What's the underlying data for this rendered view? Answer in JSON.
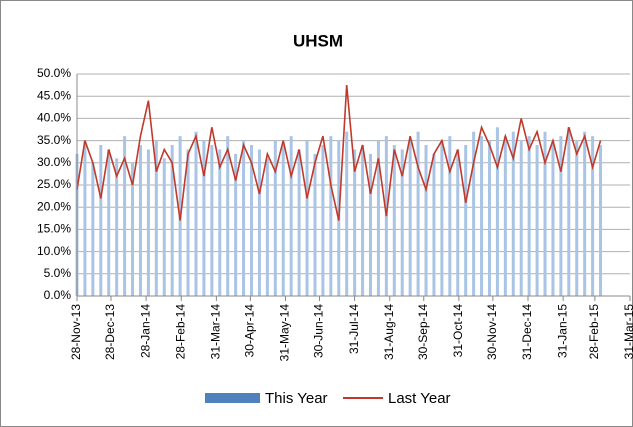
{
  "chart_data": {
    "type": "bar-line",
    "title": "UHSM",
    "x": [
      "2013-11-28",
      "2013-12-05",
      "2013-12-12",
      "2013-12-19",
      "2013-12-26",
      "2014-01-02",
      "2014-01-09",
      "2014-01-16",
      "2014-01-23",
      "2014-01-30",
      "2014-02-06",
      "2014-02-13",
      "2014-02-20",
      "2014-02-27",
      "2014-03-06",
      "2014-03-13",
      "2014-03-20",
      "2014-03-27",
      "2014-04-03",
      "2014-04-10",
      "2014-04-17",
      "2014-04-24",
      "2014-05-01",
      "2014-05-08",
      "2014-05-15",
      "2014-05-22",
      "2014-05-29",
      "2014-06-05",
      "2014-06-12",
      "2014-06-19",
      "2014-06-26",
      "2014-07-03",
      "2014-07-10",
      "2014-07-17",
      "2014-07-24",
      "2014-07-31",
      "2014-08-07",
      "2014-08-14",
      "2014-08-21",
      "2014-08-28",
      "2014-09-04",
      "2014-09-11",
      "2014-09-18",
      "2014-09-25",
      "2014-10-02",
      "2014-10-09",
      "2014-10-16",
      "2014-10-23",
      "2014-10-30",
      "2014-11-06",
      "2014-11-13",
      "2014-11-20",
      "2014-11-27",
      "2014-12-04",
      "2014-12-11",
      "2014-12-18",
      "2014-12-25",
      "2015-01-01",
      "2015-01-08",
      "2015-01-15",
      "2015-01-22",
      "2015-01-29",
      "2015-02-05",
      "2015-02-12",
      "2015-02-19",
      "2015-02-26",
      "2015-03-05"
    ],
    "series": [
      {
        "name": "This Year",
        "kind": "bar",
        "color": "#a9c4e4",
        "values": [
          32,
          35,
          30,
          34,
          33,
          31,
          36,
          30,
          34,
          33,
          35,
          31,
          34,
          36,
          33,
          37,
          35,
          34,
          33,
          36,
          32,
          35,
          34,
          33,
          31,
          35,
          34,
          36,
          33,
          35,
          32,
          34,
          36,
          35,
          37,
          33,
          34,
          32,
          35,
          36,
          34,
          33,
          35,
          37,
          34,
          32,
          35,
          36,
          33,
          34,
          37,
          36,
          35,
          38,
          36,
          37,
          35,
          36,
          34,
          37,
          35,
          36,
          38,
          35,
          37,
          36,
          34
        ]
      },
      {
        "name": "Last Year",
        "kind": "line",
        "color": "#c0392b",
        "values": [
          24,
          35,
          30,
          22,
          33,
          27,
          31,
          25,
          36,
          44,
          28,
          33,
          30,
          17,
          32,
          36,
          27,
          38,
          29,
          33,
          26,
          34,
          30,
          23,
          32,
          28,
          35,
          27,
          33,
          22,
          30,
          36,
          25,
          17,
          47.5,
          28,
          34,
          23,
          31,
          18,
          33,
          27,
          36,
          29,
          24,
          32,
          35,
          28,
          33,
          21,
          30,
          38,
          34,
          29,
          36,
          31,
          40,
          33,
          37,
          30,
          35,
          28,
          38,
          32,
          36,
          29,
          35
        ]
      }
    ],
    "ylim": [
      0,
      50
    ],
    "yticks": [
      {
        "value": 0,
        "label": "0.0%"
      },
      {
        "value": 5,
        "label": "5.0%"
      },
      {
        "value": 10,
        "label": "10.0%"
      },
      {
        "value": 15,
        "label": "15.0%"
      },
      {
        "value": 20,
        "label": "20.0%"
      },
      {
        "value": 25,
        "label": "25.0%"
      },
      {
        "value": 30,
        "label": "30.0%"
      },
      {
        "value": 35,
        "label": "35.0%"
      },
      {
        "value": 40,
        "label": "40.0%"
      },
      {
        "value": 45,
        "label": "45.0%"
      },
      {
        "value": 50,
        "label": "50.0%"
      }
    ],
    "xlim": [
      "2013-11-28",
      "2015-03-31"
    ],
    "xticks": [
      {
        "value": "2013-11-28",
        "label": "28-Nov-13"
      },
      {
        "value": "2013-12-28",
        "label": "28-Dec-13"
      },
      {
        "value": "2014-01-28",
        "label": "28-Jan-14"
      },
      {
        "value": "2014-02-28",
        "label": "28-Feb-14"
      },
      {
        "value": "2014-03-31",
        "label": "31-Mar-14"
      },
      {
        "value": "2014-04-30",
        "label": "30-Apr-14"
      },
      {
        "value": "2014-05-31",
        "label": "31-May-14"
      },
      {
        "value": "2014-06-30",
        "label": "30-Jun-14"
      },
      {
        "value": "2014-07-31",
        "label": "31-Jul-14"
      },
      {
        "value": "2014-08-31",
        "label": "31-Aug-14"
      },
      {
        "value": "2014-09-30",
        "label": "30-Sep-14"
      },
      {
        "value": "2014-10-31",
        "label": "31-Oct-14"
      },
      {
        "value": "2014-11-30",
        "label": "30-Nov-14"
      },
      {
        "value": "2014-12-31",
        "label": "31-Dec-14"
      },
      {
        "value": "2015-01-31",
        "label": "31-Jan-15"
      },
      {
        "value": "2015-02-28",
        "label": "28-Feb-15"
      },
      {
        "value": "2015-03-31",
        "label": "31-Mar-15"
      }
    ],
    "grid": true,
    "legend": "bottom"
  }
}
